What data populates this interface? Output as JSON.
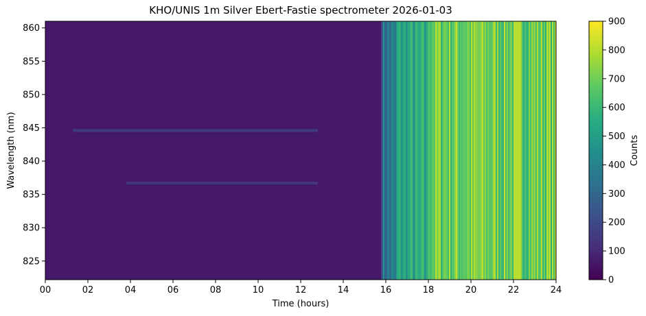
{
  "chart_data": {
    "type": "heatmap",
    "title": "KHO/UNIS 1m Silver Ebert-Fastie spectrometer 2026-01-03",
    "xlabel": "Time (hours)",
    "ylabel": "Wavelength (nm)",
    "colorbar_label": "Counts",
    "colormap": "viridis",
    "xlim": [
      0,
      24
    ],
    "ylim": [
      822.2,
      861.0
    ],
    "clim": [
      0,
      900
    ],
    "x_ticks": [
      0,
      2,
      4,
      6,
      8,
      10,
      12,
      14,
      16,
      18,
      20,
      22,
      24
    ],
    "x_tick_labels": [
      "00",
      "02",
      "04",
      "06",
      "08",
      "10",
      "12",
      "14",
      "16",
      "18",
      "20",
      "22",
      "24"
    ],
    "y_ticks": [
      825,
      830,
      835,
      840,
      845,
      850,
      855,
      860
    ],
    "y_tick_labels": [
      "825",
      "830",
      "835",
      "840",
      "845",
      "850",
      "855",
      "860"
    ],
    "colorbar_ticks": [
      0,
      100,
      200,
      300,
      400,
      500,
      600,
      700,
      800,
      900
    ],
    "colorbar_tick_labels": [
      "0",
      "100",
      "200",
      "300",
      "400",
      "500",
      "600",
      "700",
      "800",
      "900"
    ],
    "regions": [
      {
        "time_start": 0.0,
        "time_end": 15.8,
        "approx_counts": 60
      },
      {
        "time_start": 15.8,
        "time_end": 16.5,
        "approx_counts": 350
      },
      {
        "time_start": 16.5,
        "time_end": 18.0,
        "approx_counts": 520
      },
      {
        "time_start": 18.0,
        "time_end": 24.0,
        "approx_counts": 700
      }
    ],
    "emission_lines": [
      {
        "wavelength": 844.6,
        "time_start": 1.3,
        "time_end": 12.8,
        "approx_counts": 200
      },
      {
        "wavelength": 836.7,
        "time_start": 3.8,
        "time_end": 12.8,
        "approx_counts": 180
      }
    ]
  }
}
